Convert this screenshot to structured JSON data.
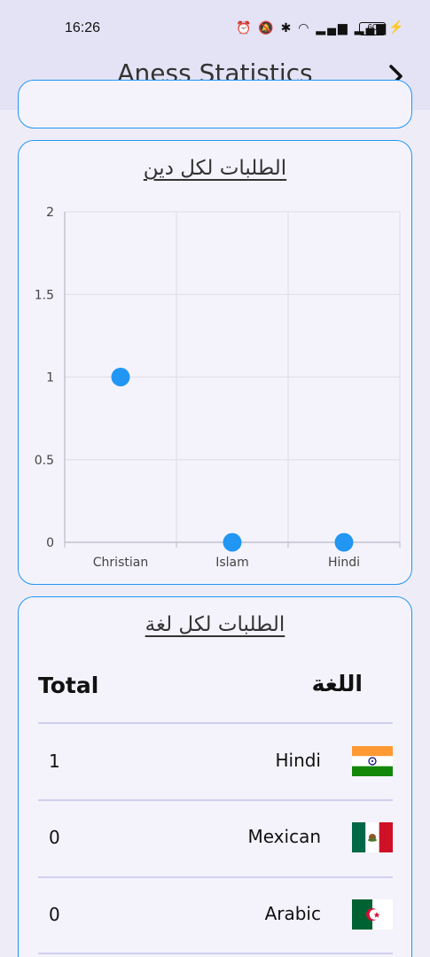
{
  "status_bar": {
    "time": "16:26",
    "battery": "60"
  },
  "app_bar": {
    "title": "Aness Statistics"
  },
  "religion_card": {
    "title": "الطلبات لكل دين"
  },
  "chart_data": {
    "type": "scatter",
    "title": "الطلبات لكل دين",
    "categories": [
      "Christian",
      "Islam",
      "Hindi"
    ],
    "values": [
      1,
      0,
      0
    ],
    "y_ticks": [
      "0",
      "0.5",
      "1",
      "1.5",
      "2"
    ],
    "ylim": [
      0,
      2
    ],
    "grid": true,
    "point_color": "#2196f3"
  },
  "language_card": {
    "title": "الطلبات لكل لغة",
    "header_total": "Total",
    "header_language": "اللغة",
    "rows": [
      {
        "count": "1",
        "language": "Hindi",
        "flag": "india-flag"
      },
      {
        "count": "0",
        "language": "Mexican",
        "flag": "mexico-flag"
      },
      {
        "count": "0",
        "language": "Arabic",
        "flag": "algeria-flag"
      }
    ]
  },
  "colors": {
    "accent": "#2196f3",
    "app_bar": "#e4e3f5",
    "background": "#eeedf7"
  }
}
